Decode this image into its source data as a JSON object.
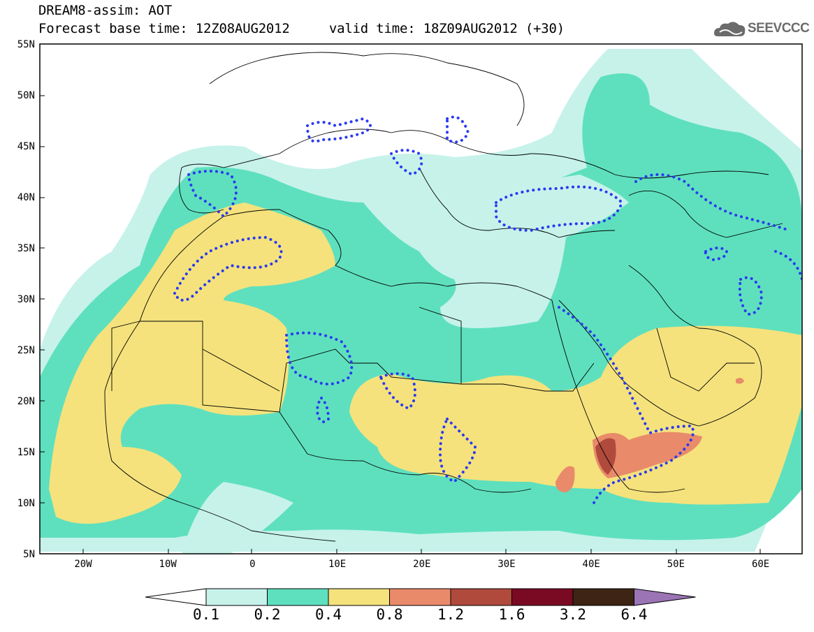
{
  "header": {
    "title_line1": "DREAM8-assim: AOT",
    "title_line2": "Forecast base time: 12Z08AUG2012     valid time: 18Z09AUG2012 (+30)",
    "logo_text": "SEEVCCC"
  },
  "map": {
    "lat_labels": [
      "55N",
      "50N",
      "45N",
      "40N",
      "35N",
      "30N",
      "25N",
      "20N",
      "15N",
      "10N",
      "5N"
    ],
    "lon_labels": [
      "20W",
      "10W",
      "0",
      "10E",
      "20E",
      "30E",
      "40E",
      "50E",
      "60E"
    ],
    "colors": {
      "c01": "#c6f2ea",
      "c02": "#5ee0be",
      "c04": "#f5e27c",
      "c08": "#e98a6a",
      "c12": "#b04a3c",
      "c16": "#7a0a24",
      "c32": "#3d2414",
      "c64": "#9a74b4",
      "contour": "#2a3af0"
    }
  },
  "colorbar": {
    "labels": [
      "0.1",
      "0.2",
      "0.4",
      "0.8",
      "1.2",
      "1.6",
      "3.2",
      "6.4"
    ]
  }
}
